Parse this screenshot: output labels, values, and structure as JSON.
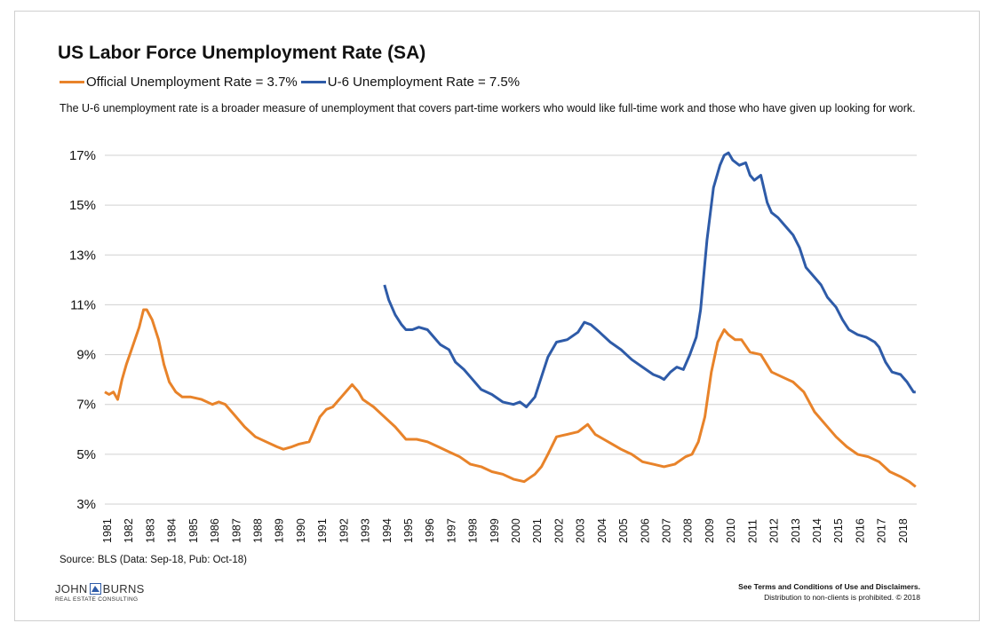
{
  "title": "US Labor Force Unemployment Rate (SA)",
  "legend": {
    "official": "Official Unemployment Rate = 3.7%",
    "u6": "U-6 Unemployment Rate = 7.5%"
  },
  "subtitle": "The U-6 unemployment  rate is a broader measure of unemployment  that covers part-time workers who would like full-time work and those who have given up looking for work.",
  "source": "Source:  BLS (Data:  Sep-18,  Pub:  Oct-18)",
  "logo": {
    "name_left": "JOHN",
    "name_right": "BURNS",
    "sub": "REAL ESTATE CONSULTING"
  },
  "disclaimer": {
    "line1": "See Terms and Conditions of Use and Disclaimers.",
    "line2": "Distribution to non-clients is prohibited.  © 2018"
  },
  "colors": {
    "official": "#E8832A",
    "u6": "#2E5BA8",
    "grid": "#d0d0d0"
  },
  "chart_data": {
    "type": "line",
    "ylim": [
      3,
      17
    ],
    "yticks": [
      "3%",
      "5%",
      "7%",
      "9%",
      "11%",
      "13%",
      "15%",
      "17%"
    ],
    "ytick_values": [
      3,
      5,
      7,
      9,
      11,
      13,
      15,
      17
    ],
    "xticks": [
      "1981",
      "1982",
      "1983",
      "1984",
      "1985",
      "1986",
      "1987",
      "1988",
      "1989",
      "1990",
      "1991",
      "1992",
      "1993",
      "1994",
      "1995",
      "1996",
      "1997",
      "1998",
      "1999",
      "2000",
      "2001",
      "2002",
      "2003",
      "2004",
      "2005",
      "2006",
      "2007",
      "2008",
      "2009",
      "2010",
      "2011",
      "2012",
      "2013",
      "2014",
      "2015",
      "2016",
      "2017",
      "2018"
    ],
    "xlim": [
      1981.0,
      2018.75
    ],
    "grid": true,
    "legend_position": "top",
    "series": [
      {
        "name": "Official Unemployment Rate = 3.7%",
        "color": "#E8832A",
        "x": [
          1981.0,
          1981.2,
          1981.4,
          1981.6,
          1981.8,
          1982.0,
          1982.2,
          1982.4,
          1982.6,
          1982.8,
          1982.95,
          1983.2,
          1983.5,
          1983.75,
          1984.0,
          1984.3,
          1984.6,
          1985.0,
          1985.5,
          1986.0,
          1986.3,
          1986.6,
          1987.0,
          1987.5,
          1988.0,
          1988.5,
          1989.0,
          1989.3,
          1989.7,
          1990.0,
          1990.5,
          1991.0,
          1991.3,
          1991.6,
          1992.0,
          1992.3,
          1992.5,
          1992.8,
          1993.0,
          1993.5,
          1994.0,
          1994.5,
          1995.0,
          1995.5,
          1996.0,
          1996.5,
          1997.0,
          1997.5,
          1998.0,
          1998.5,
          1999.0,
          1999.5,
          2000.0,
          2000.5,
          2001.0,
          2001.3,
          2001.6,
          2002.0,
          2002.5,
          2003.0,
          2003.45,
          2003.8,
          2004.2,
          2004.6,
          2005.0,
          2005.5,
          2006.0,
          2006.5,
          2007.0,
          2007.5,
          2008.0,
          2008.3,
          2008.6,
          2008.9,
          2009.2,
          2009.5,
          2009.8,
          2010.0,
          2010.3,
          2010.6,
          2011.0,
          2011.5,
          2012.0,
          2012.5,
          2013.0,
          2013.5,
          2014.0,
          2014.5,
          2015.0,
          2015.5,
          2016.0,
          2016.5,
          2017.0,
          2017.5,
          2018.0,
          2018.4,
          2018.7
        ],
        "y": [
          7.5,
          7.4,
          7.5,
          7.2,
          8.0,
          8.6,
          9.1,
          9.6,
          10.1,
          10.8,
          10.8,
          10.4,
          9.6,
          8.6,
          7.9,
          7.5,
          7.3,
          7.3,
          7.2,
          7.0,
          7.1,
          7.0,
          6.6,
          6.1,
          5.7,
          5.5,
          5.3,
          5.2,
          5.3,
          5.4,
          5.5,
          6.5,
          6.8,
          6.9,
          7.3,
          7.6,
          7.8,
          7.5,
          7.2,
          6.9,
          6.5,
          6.1,
          5.6,
          5.6,
          5.5,
          5.3,
          5.1,
          4.9,
          4.6,
          4.5,
          4.3,
          4.2,
          4.0,
          3.9,
          4.2,
          4.5,
          5.0,
          5.7,
          5.8,
          5.9,
          6.2,
          5.8,
          5.6,
          5.4,
          5.2,
          5.0,
          4.7,
          4.6,
          4.5,
          4.6,
          4.9,
          5.0,
          5.5,
          6.5,
          8.3,
          9.5,
          10.0,
          9.8,
          9.6,
          9.6,
          9.1,
          9.0,
          8.3,
          8.1,
          7.9,
          7.5,
          6.7,
          6.2,
          5.7,
          5.3,
          5.0,
          4.9,
          4.7,
          4.3,
          4.1,
          3.9,
          3.7
        ]
      },
      {
        "name": "U-6 Unemployment Rate = 7.5%",
        "color": "#2E5BA8",
        "x": [
          1994.0,
          1994.2,
          1994.5,
          1994.8,
          1995.0,
          1995.3,
          1995.6,
          1996.0,
          1996.3,
          1996.6,
          1997.0,
          1997.3,
          1997.7,
          1998.0,
          1998.5,
          1999.0,
          1999.5,
          2000.0,
          2000.3,
          2000.6,
          2001.0,
          2001.3,
          2001.6,
          2002.0,
          2002.5,
          2003.0,
          2003.3,
          2003.6,
          2004.0,
          2004.5,
          2005.0,
          2005.5,
          2006.0,
          2006.5,
          2006.8,
          2007.0,
          2007.3,
          2007.6,
          2007.9,
          2008.2,
          2008.5,
          2008.7,
          2009.0,
          2009.3,
          2009.6,
          2009.8,
          2010.0,
          2010.2,
          2010.5,
          2010.8,
          2011.0,
          2011.2,
          2011.5,
          2011.8,
          2012.0,
          2012.3,
          2012.6,
          2013.0,
          2013.3,
          2013.6,
          2014.0,
          2014.3,
          2014.6,
          2015.0,
          2015.3,
          2015.6,
          2016.0,
          2016.4,
          2016.8,
          2017.0,
          2017.3,
          2017.6,
          2018.0,
          2018.3,
          2018.6,
          2018.7
        ],
        "y": [
          11.8,
          11.2,
          10.6,
          10.2,
          10.0,
          10.0,
          10.1,
          10.0,
          9.7,
          9.4,
          9.2,
          8.7,
          8.4,
          8.1,
          7.6,
          7.4,
          7.1,
          7.0,
          7.1,
          6.9,
          7.3,
          8.1,
          8.9,
          9.5,
          9.6,
          9.9,
          10.3,
          10.2,
          9.9,
          9.5,
          9.2,
          8.8,
          8.5,
          8.2,
          8.1,
          8.0,
          8.3,
          8.5,
          8.4,
          9.0,
          9.7,
          10.8,
          13.6,
          15.7,
          16.6,
          17.0,
          17.1,
          16.8,
          16.6,
          16.7,
          16.2,
          16.0,
          16.2,
          15.1,
          14.7,
          14.5,
          14.2,
          13.8,
          13.3,
          12.5,
          12.1,
          11.8,
          11.3,
          10.9,
          10.4,
          10.0,
          9.8,
          9.7,
          9.5,
          9.3,
          8.7,
          8.3,
          8.2,
          7.9,
          7.5,
          7.5
        ]
      }
    ]
  }
}
